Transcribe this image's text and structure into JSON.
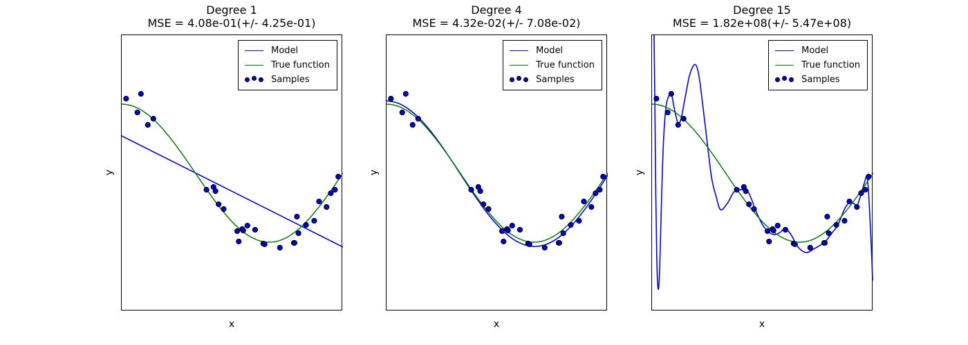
{
  "figure": {
    "background": "#ffffff"
  },
  "legend": {
    "items": [
      {
        "label": "Model",
        "color": "#0000ee",
        "marker": "line"
      },
      {
        "label": "True function",
        "color": "#007f00",
        "marker": "line"
      },
      {
        "label": "Samples",
        "color": "#0000dd",
        "marker": "dots"
      }
    ]
  },
  "samples": {
    "marker_color": "#0000dd",
    "edge_color": "#000000",
    "x": [
      0.02,
      0.071,
      0.087,
      0.118,
      0.143,
      0.383,
      0.415,
      0.424,
      0.438,
      0.461,
      0.522,
      0.529,
      0.545,
      0.549,
      0.568,
      0.603,
      0.64,
      0.646,
      0.715,
      0.778,
      0.781,
      0.792,
      0.799,
      0.833,
      0.87,
      0.892,
      0.926,
      0.945,
      0.964,
      0.979
    ],
    "y": [
      1.08,
      0.88,
      1.15,
      0.7,
      0.79,
      -0.24,
      -0.2,
      -0.26,
      -0.45,
      -0.52,
      -0.84,
      -0.99,
      -0.81,
      -0.83,
      -0.76,
      -0.82,
      -1.02,
      -1.03,
      -1.08,
      -1.01,
      -1.01,
      -0.63,
      -0.87,
      -0.75,
      -0.69,
      -0.41,
      -0.49,
      -0.29,
      -0.24,
      -0.05
    ]
  },
  "chart_data": [
    {
      "type": "line+scatter",
      "title": "Degree 1",
      "subtitle": "MSE = 4.08e-01(+/- 4.25e-01)",
      "xlabel": "x",
      "ylabel": "y",
      "xlim": [
        0,
        1
      ],
      "ylim": [
        -2,
        2
      ],
      "grid": false,
      "legend_position": "upper right",
      "true_function": {
        "kind": "cos",
        "freq_pi": 1.5,
        "color": "#007f00"
      },
      "model": {
        "kind": "linear",
        "color": "#0000ee",
        "points": [
          [
            0,
            0.54
          ],
          [
            1,
            -1.07
          ]
        ]
      }
    },
    {
      "type": "line+scatter",
      "title": "Degree 4",
      "subtitle": "MSE = 4.32e-02(+/- 7.08e-02)",
      "xlabel": "x",
      "ylabel": "y",
      "xlim": [
        0,
        1
      ],
      "ylim": [
        -2,
        2
      ],
      "grid": false,
      "legend_position": "upper right",
      "true_function": {
        "kind": "cos",
        "freq_pi": 1.5,
        "color": "#007f00"
      },
      "model": {
        "kind": "poly_points",
        "color": "#0000ee",
        "points": [
          [
            0,
            1.05
          ],
          [
            0.05,
            1.017
          ],
          [
            0.1,
            0.928
          ],
          [
            0.15,
            0.789
          ],
          [
            0.2,
            0.607
          ],
          [
            0.25,
            0.392
          ],
          [
            0.3,
            0.155
          ],
          [
            0.35,
            -0.091
          ],
          [
            0.4,
            -0.331
          ],
          [
            0.45,
            -0.555
          ],
          [
            0.5,
            -0.748
          ],
          [
            0.55,
            -0.902
          ],
          [
            0.6,
            -1.007
          ],
          [
            0.65,
            -1.058
          ],
          [
            0.7,
            -1.052
          ],
          [
            0.75,
            -0.99
          ],
          [
            0.8,
            -0.874
          ],
          [
            0.85,
            -0.71
          ],
          [
            0.9,
            -0.508
          ],
          [
            0.95,
            -0.277
          ],
          [
            1,
            -0.03
          ]
        ]
      }
    },
    {
      "type": "line+scatter",
      "title": "Degree 15",
      "subtitle": "MSE = 1.82e+08(+/- 5.47e+08)",
      "xlabel": "x",
      "ylabel": "y",
      "xlim": [
        0,
        1
      ],
      "ylim": [
        -2,
        2
      ],
      "grid": false,
      "legend_position": "upper right",
      "true_function": {
        "kind": "cos",
        "freq_pi": 1.5,
        "color": "#007f00"
      },
      "model": {
        "kind": "poly_points",
        "color": "#0000ee",
        "points": [
          [
            0.008,
            2.3
          ],
          [
            0.013,
            1.0
          ],
          [
            0.017,
            -0.3
          ],
          [
            0.022,
            -1.3
          ],
          [
            0.028,
            -1.68
          ],
          [
            0.034,
            -1.45
          ],
          [
            0.04,
            -0.75
          ],
          [
            0.047,
            0.05
          ],
          [
            0.055,
            0.65
          ],
          [
            0.065,
            1.0
          ],
          [
            0.078,
            1.13
          ],
          [
            0.088,
            1.15
          ],
          [
            0.1,
            0.95
          ],
          [
            0.118,
            0.72
          ],
          [
            0.132,
            0.8
          ],
          [
            0.15,
            1.1
          ],
          [
            0.17,
            1.42
          ],
          [
            0.193,
            1.575
          ],
          [
            0.21,
            1.45
          ],
          [
            0.227,
            1.05
          ],
          [
            0.253,
            0.35
          ],
          [
            0.27,
            -0.08
          ],
          [
            0.29,
            -0.34
          ],
          [
            0.31,
            -0.53
          ],
          [
            0.342,
            -0.43
          ],
          [
            0.368,
            -0.28
          ],
          [
            0.39,
            -0.24
          ],
          [
            0.43,
            -0.26
          ],
          [
            0.45,
            -0.38
          ],
          [
            0.467,
            -0.53
          ],
          [
            0.5,
            -0.75
          ],
          [
            0.53,
            -0.86
          ],
          [
            0.555,
            -0.89
          ],
          [
            0.58,
            -0.855
          ],
          [
            0.602,
            -0.8
          ],
          [
            0.63,
            -0.9
          ],
          [
            0.66,
            -1.07
          ],
          [
            0.696,
            -1.15
          ],
          [
            0.73,
            -1.1
          ],
          [
            0.78,
            -1.0
          ],
          [
            0.81,
            -0.88
          ],
          [
            0.84,
            -0.75
          ],
          [
            0.87,
            -0.52
          ],
          [
            0.894,
            -0.42
          ],
          [
            0.912,
            -0.44
          ],
          [
            0.928,
            -0.46
          ],
          [
            0.945,
            -0.3
          ],
          [
            0.96,
            -0.14
          ],
          [
            0.972,
            -0.05
          ],
          [
            0.98,
            -0.35
          ],
          [
            0.988,
            -0.85
          ],
          [
            0.993,
            -1.2
          ],
          [
            0.997,
            -1.55
          ]
        ]
      }
    }
  ]
}
